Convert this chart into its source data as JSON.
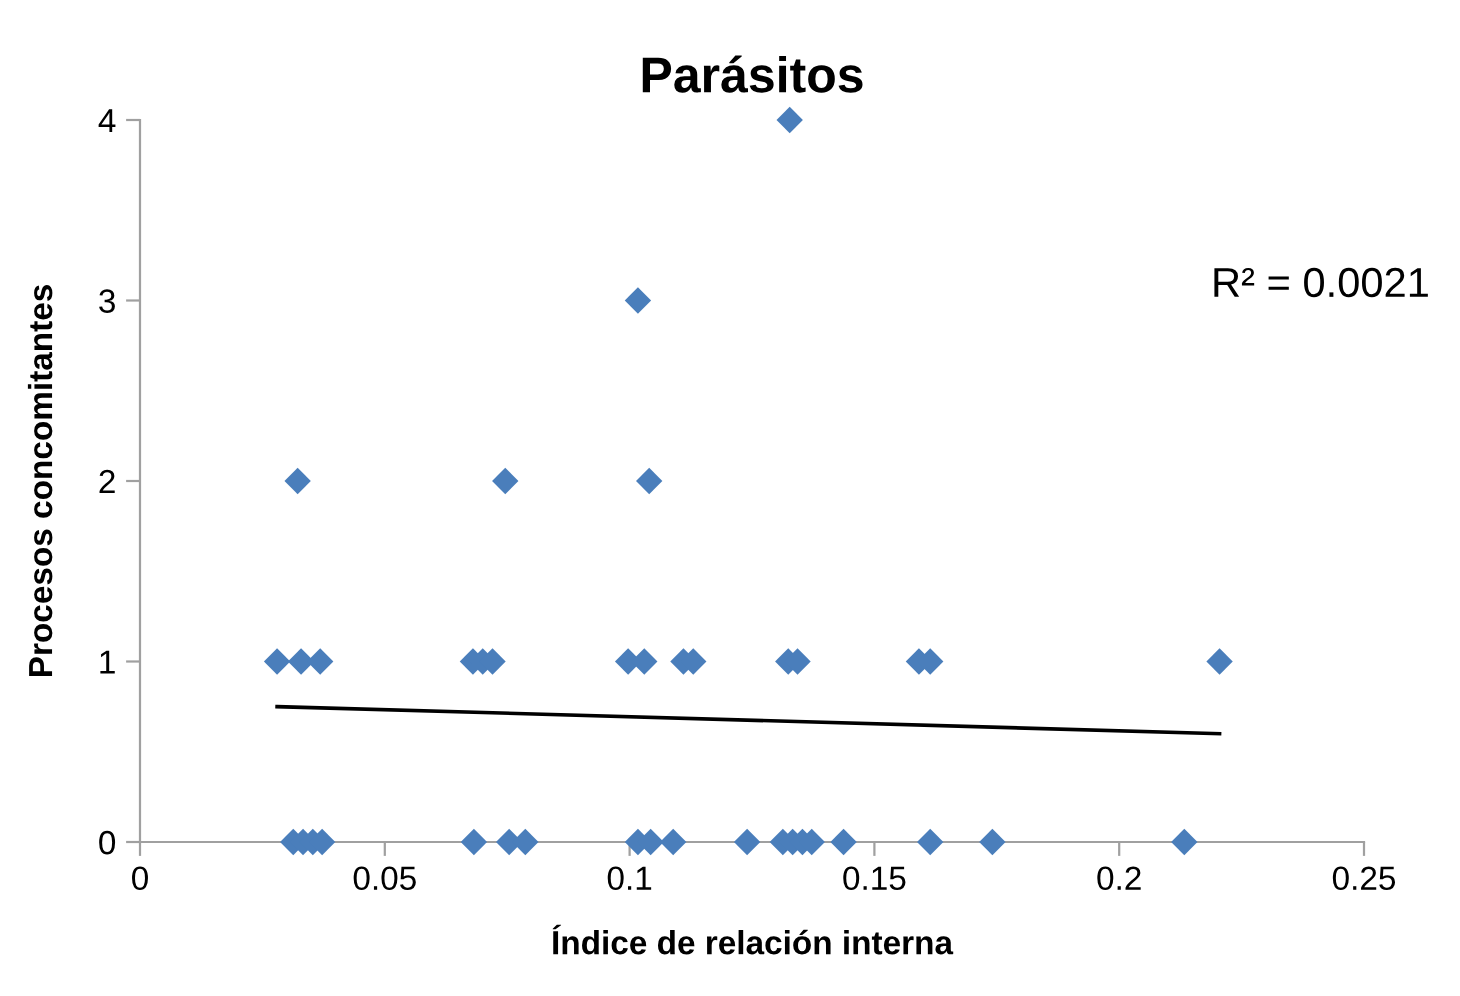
{
  "chart_data": {
    "type": "scatter",
    "title": "Parásitos",
    "xlabel": "Índice de relación interna",
    "ylabel": "Procesos concomitantes",
    "series": [
      {
        "color": "#4a7ebb",
        "marker": "diamond",
        "x": [
          0.028,
          0.0329,
          0.0368,
          0.068,
          0.07,
          0.072,
          0.0997,
          0.103,
          0.111,
          0.113,
          0.1324,
          0.1343,
          0.1591,
          0.1614,
          0.2205,
          0.0313,
          0.0333,
          0.0353,
          0.0372,
          0.0682,
          0.0754,
          0.0787,
          0.1017,
          0.1043,
          0.1089,
          0.124,
          0.1313,
          0.1333,
          0.1353,
          0.1372,
          0.1437,
          0.1614,
          0.1741,
          0.2133,
          0.0322,
          0.0746,
          0.104,
          0.1017,
          0.1327
        ],
        "values": [
          1,
          1,
          1,
          1,
          1,
          1,
          1,
          1,
          1,
          1,
          1,
          1,
          1,
          1,
          1,
          0,
          0,
          0,
          0,
          0,
          0,
          0,
          0,
          0,
          0,
          0,
          0,
          0,
          0,
          0,
          0,
          0,
          0,
          0,
          2,
          2,
          2,
          3,
          4
        ]
      },
      {
        "type": "line",
        "color": "#000000",
        "marker": "none",
        "line_style": "solid",
        "x": [
          0.028,
          0.2205
        ],
        "values": [
          0.75,
          0.6
        ]
      }
    ],
    "annotations": [
      "R² = 0.0021"
    ],
    "xlim": [
      0,
      0.25
    ],
    "xticks": [
      0,
      0.05,
      0.1,
      0.15,
      0.2,
      0.25
    ],
    "ylim": [
      0,
      4
    ],
    "yticks": [
      0,
      1,
      2,
      3,
      4
    ],
    "grid": false,
    "legend": false
  }
}
